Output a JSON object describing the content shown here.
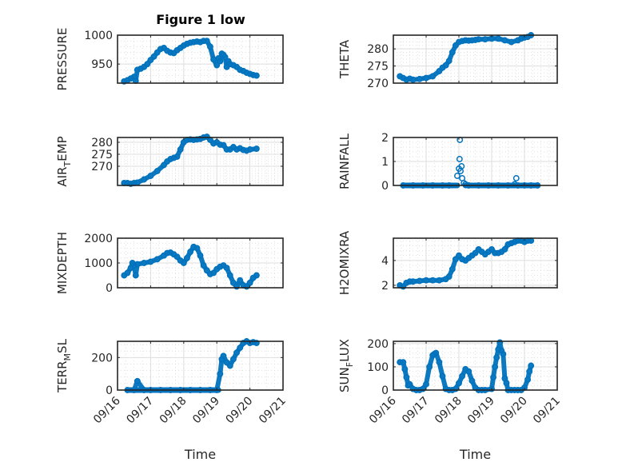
{
  "figure_title": "Figure 1 low",
  "marker_color": "#0072BD",
  "chart_data": [
    {
      "type": "scatter",
      "id": "pressure",
      "title": "Figure 1 low",
      "ylabel": "PRESSURE",
      "ylabel_sub": null,
      "xlabel": "",
      "xlim": [
        0,
        5
      ],
      "ylim": [
        917,
        1000
      ],
      "yticks": [
        950,
        1000
      ],
      "xtick_labels": [
        "09/16",
        "09/17",
        "09/18",
        "09/19",
        "09/20",
        "09/21"
      ],
      "show_xtick_labels": false,
      "grid": true,
      "minor_grid": true,
      "x": [
        0.2,
        0.3,
        0.4,
        0.5,
        0.55,
        0.6,
        0.7,
        0.8,
        0.9,
        1.0,
        1.1,
        1.2,
        1.3,
        1.4,
        1.5,
        1.6,
        1.7,
        1.8,
        1.9,
        2.0,
        2.1,
        2.2,
        2.3,
        2.4,
        2.5,
        2.6,
        2.7,
        2.8,
        2.9,
        3.0,
        3.05,
        3.1,
        3.15,
        3.2,
        3.25,
        3.3,
        3.35,
        3.4,
        3.5,
        3.6,
        3.7,
        3.8,
        3.9,
        4.0,
        4.1,
        4.2
      ],
      "y": [
        920,
        922,
        925,
        928,
        921,
        940,
        942,
        945,
        950,
        957,
        963,
        970,
        976,
        978,
        973,
        970,
        969,
        974,
        978,
        982,
        985,
        987,
        988,
        989,
        988,
        990,
        990,
        980,
        958,
        948,
        960,
        955,
        968,
        966,
        962,
        945,
        955,
        950,
        948,
        945,
        940,
        938,
        935,
        933,
        931,
        930
      ]
    },
    {
      "type": "scatter",
      "id": "theta",
      "ylabel": "THETA",
      "ylabel_sub": null,
      "xlabel": "",
      "xlim": [
        0,
        5
      ],
      "ylim": [
        270,
        284
      ],
      "yticks": [
        270,
        275,
        280
      ],
      "show_xtick_labels": false,
      "grid": true,
      "minor_grid": true,
      "x": [
        0.2,
        0.3,
        0.4,
        0.5,
        0.6,
        0.8,
        1.0,
        1.2,
        1.4,
        1.5,
        1.6,
        1.7,
        1.8,
        1.9,
        2.0,
        2.1,
        2.2,
        2.3,
        2.4,
        2.5,
        2.6,
        2.8,
        3.0,
        3.2,
        3.4,
        3.6,
        3.8,
        3.9,
        4.0,
        4.1,
        4.2
      ],
      "y": [
        272,
        271.5,
        271,
        271.3,
        271,
        271.2,
        271.5,
        272,
        273.5,
        274.5,
        275.2,
        276.5,
        279,
        281,
        282,
        282.3,
        282.5,
        282.4,
        282.5,
        282.6,
        282.8,
        282.8,
        283,
        283,
        282.5,
        282,
        282.5,
        283,
        283.3,
        283.5,
        284
      ]
    },
    {
      "type": "scatter",
      "id": "air_temp",
      "ylabel": "AIR",
      "ylabel_sub": "T",
      "ylabel_rest": "EMP",
      "xlabel": "",
      "xlim": [
        0,
        5
      ],
      "ylim": [
        262,
        282
      ],
      "yticks": [
        270,
        275,
        280
      ],
      "show_xtick_labels": false,
      "grid": true,
      "minor_grid": true,
      "x": [
        0.2,
        0.3,
        0.4,
        0.5,
        0.6,
        0.8,
        1.0,
        1.2,
        1.4,
        1.5,
        1.6,
        1.7,
        1.8,
        1.9,
        2.0,
        2.1,
        2.2,
        2.3,
        2.4,
        2.5,
        2.6,
        2.7,
        2.8,
        2.9,
        3.0,
        3.1,
        3.2,
        3.3,
        3.4,
        3.5,
        3.6,
        3.7,
        3.8,
        3.9,
        4.0,
        4.2
      ],
      "y": [
        263,
        263,
        262.7,
        263,
        263.2,
        264.5,
        266,
        268,
        270.5,
        272,
        273,
        273.5,
        274,
        277,
        280,
        281,
        281.2,
        281,
        281.2,
        281.4,
        282,
        282.3,
        281,
        279.5,
        280,
        279,
        278.8,
        277,
        277,
        278,
        277,
        277.5,
        276.8,
        276.5,
        277,
        277.3
      ]
    },
    {
      "type": "scatter",
      "id": "rainfall",
      "ylabel": "RAINFALL",
      "ylabel_sub": null,
      "xlabel": "",
      "xlim": [
        0,
        5
      ],
      "ylim": [
        0,
        2
      ],
      "yticks": [
        0,
        1,
        2
      ],
      "show_xtick_labels": false,
      "grid": true,
      "minor_grid": true,
      "x": [
        0.3,
        0.6,
        0.9,
        1.2,
        1.5,
        1.7,
        1.95,
        2.0,
        2.02,
        2.03,
        2.05,
        2.08,
        2.1,
        2.15,
        2.2,
        2.3,
        2.6,
        2.9,
        3.2,
        3.5,
        3.7,
        3.75,
        3.8,
        4.0,
        4.2,
        4.4
      ],
      "y": [
        0,
        0,
        0,
        0,
        0,
        0,
        0.4,
        0.7,
        1.1,
        1.9,
        0.6,
        0.8,
        0.3,
        0.1,
        0.05,
        0,
        0,
        0,
        0,
        0,
        0.05,
        0.3,
        0,
        0,
        0,
        0
      ]
    },
    {
      "type": "scatter",
      "id": "mixdepth",
      "ylabel": "MIXDEPTH",
      "ylabel_sub": null,
      "xlabel": "",
      "xlim": [
        0,
        5
      ],
      "ylim": [
        0,
        2000
      ],
      "yticks": [
        0,
        1000,
        2000
      ],
      "show_xtick_labels": false,
      "grid": true,
      "minor_grid": true,
      "x": [
        0.2,
        0.3,
        0.4,
        0.45,
        0.5,
        0.55,
        0.6,
        0.8,
        1.0,
        1.2,
        1.4,
        1.5,
        1.6,
        1.7,
        1.8,
        1.9,
        2.0,
        2.1,
        2.2,
        2.3,
        2.4,
        2.5,
        2.6,
        2.7,
        2.8,
        2.9,
        3.0,
        3.1,
        3.2,
        3.3,
        3.4,
        3.5,
        3.6,
        3.7,
        3.8,
        3.9,
        4.0,
        4.1,
        4.2
      ],
      "y": [
        500,
        600,
        800,
        1000,
        900,
        500,
        950,
        1000,
        1050,
        1150,
        1300,
        1400,
        1420,
        1350,
        1250,
        1100,
        1000,
        1200,
        1450,
        1650,
        1600,
        1300,
        900,
        700,
        550,
        600,
        750,
        850,
        900,
        800,
        500,
        200,
        50,
        300,
        100,
        50,
        200,
        400,
        500
      ]
    },
    {
      "type": "scatter",
      "id": "h2omixra",
      "ylabel": "H2OMIXRA",
      "ylabel_sub": null,
      "xlabel": "",
      "xlim": [
        0,
        5
      ],
      "ylim": [
        1.8,
        5.8
      ],
      "yticks": [
        2,
        4
      ],
      "show_xtick_labels": false,
      "grid": true,
      "minor_grid": true,
      "x": [
        0.2,
        0.3,
        0.4,
        0.5,
        0.6,
        0.8,
        1.0,
        1.2,
        1.4,
        1.6,
        1.7,
        1.8,
        1.9,
        2.0,
        2.1,
        2.2,
        2.3,
        2.4,
        2.5,
        2.6,
        2.7,
        2.8,
        2.9,
        3.0,
        3.1,
        3.2,
        3.3,
        3.4,
        3.5,
        3.6,
        3.7,
        3.8,
        3.9,
        4.0,
        4.1,
        4.2
      ],
      "y": [
        2.0,
        1.9,
        2.2,
        2.3,
        2.3,
        2.35,
        2.4,
        2.4,
        2.4,
        2.5,
        2.7,
        3.3,
        4.1,
        4.4,
        4.1,
        4.0,
        4.2,
        4.4,
        4.6,
        4.9,
        4.7,
        4.5,
        4.7,
        4.9,
        4.6,
        4.6,
        4.7,
        4.9,
        5.3,
        5.4,
        5.5,
        5.6,
        5.6,
        5.5,
        5.6,
        5.6
      ]
    },
    {
      "type": "scatter",
      "id": "terr_msl",
      "ylabel": "TERR",
      "ylabel_sub": "M",
      "ylabel_rest": "SL",
      "xlabel": "Time",
      "xlim": [
        0,
        5
      ],
      "ylim": [
        0,
        300
      ],
      "yticks": [
        0,
        200
      ],
      "xtick_labels": [
        "09/16",
        "09/17",
        "09/18",
        "09/19",
        "09/20",
        "09/21"
      ],
      "show_xtick_labels": true,
      "grid": true,
      "minor_grid": true,
      "x": [
        0.3,
        0.5,
        0.6,
        0.8,
        1.0,
        1.3,
        1.6,
        1.9,
        2.2,
        2.5,
        2.8,
        3.0,
        3.1,
        3.15,
        3.2,
        3.3,
        3.4,
        3.5,
        3.6,
        3.7,
        3.8,
        3.9,
        4.0,
        4.1,
        4.2
      ],
      "y": [
        0,
        0,
        55,
        0,
        0,
        0,
        0,
        0,
        0,
        0,
        0,
        0,
        100,
        190,
        210,
        170,
        150,
        190,
        230,
        260,
        290,
        300,
        290,
        295,
        290
      ]
    },
    {
      "type": "scatter",
      "id": "sun_flux",
      "ylabel": "SUN",
      "ylabel_sub": "F",
      "ylabel_rest": "LUX",
      "xlabel": "Time",
      "xlim": [
        0,
        5
      ],
      "ylim": [
        0,
        210
      ],
      "yticks": [
        0,
        100,
        200
      ],
      "xtick_labels": [
        "09/16",
        "09/17",
        "09/18",
        "09/19",
        "09/20",
        "09/21"
      ],
      "show_xtick_labels": true,
      "grid": true,
      "minor_grid": true,
      "x": [
        0.2,
        0.3,
        0.35,
        0.4,
        0.45,
        0.5,
        0.6,
        0.7,
        0.8,
        0.9,
        1.0,
        1.1,
        1.2,
        1.25,
        1.3,
        1.4,
        1.5,
        1.6,
        1.7,
        1.8,
        1.9,
        2.0,
        2.1,
        2.2,
        2.3,
        2.4,
        2.5,
        2.6,
        2.7,
        2.8,
        3.0,
        3.05,
        3.1,
        3.15,
        3.2,
        3.25,
        3.3,
        3.35,
        3.4,
        3.45,
        3.5,
        3.6,
        3.7,
        3.8,
        3.9,
        4.0,
        4.1,
        4.15,
        4.2
      ],
      "y": [
        120,
        120,
        90,
        55,
        20,
        25,
        5,
        0,
        0,
        5,
        25,
        100,
        150,
        155,
        160,
        120,
        60,
        5,
        0,
        0,
        5,
        30,
        60,
        90,
        80,
        40,
        10,
        0,
        0,
        0,
        5,
        55,
        100,
        140,
        175,
        205,
        170,
        155,
        50,
        30,
        0,
        0,
        0,
        0,
        0,
        10,
        45,
        80,
        105
      ]
    }
  ]
}
